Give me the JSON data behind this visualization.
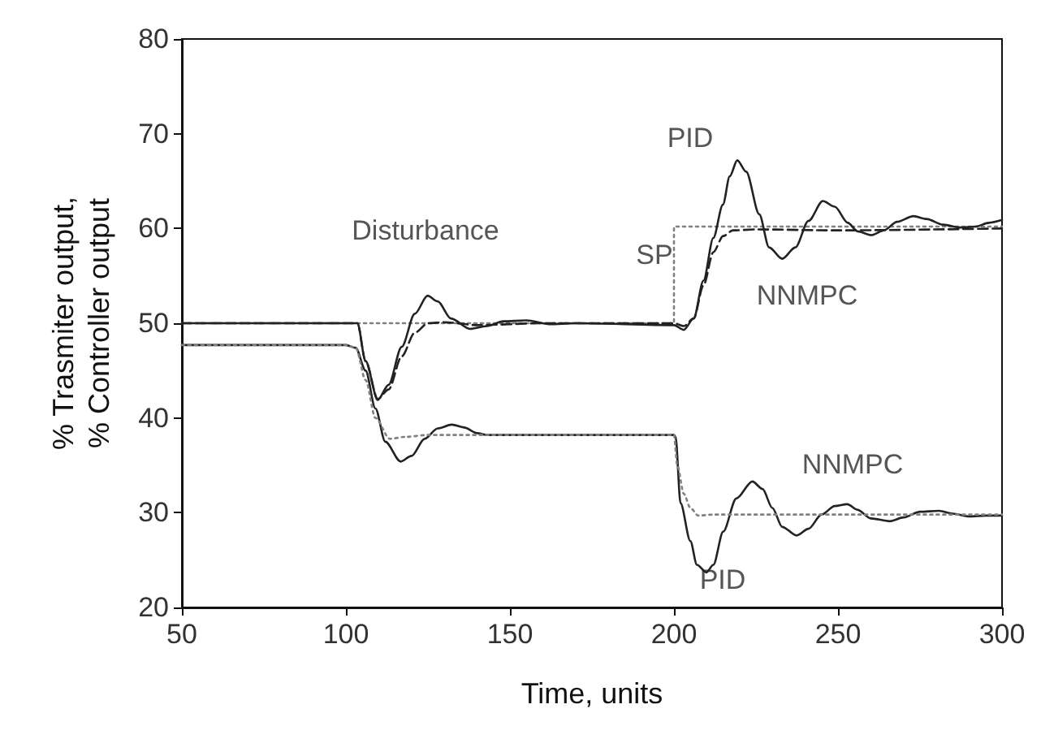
{
  "chart_data": {
    "type": "line",
    "xlabel": "Time, units",
    "ylabel": "% Trasmiter output,\n% Controller output",
    "xlim": [
      50,
      300
    ],
    "xticks": [
      50,
      100,
      150,
      200,
      250,
      300
    ],
    "ylim": [
      20,
      80
    ],
    "yticks": [
      20,
      30,
      40,
      50,
      60,
      70,
      80
    ],
    "grid": false,
    "marker": "none",
    "series": [
      {
        "color": "#808080",
        "line_style": "dotted",
        "x": [
          50,
          200,
          200,
          300
        ],
        "values": [
          50,
          50,
          60.2,
          60.2
        ]
      },
      {
        "color": "#222222",
        "line_style": "dashed",
        "x": [
          50,
          103.5,
          106,
          109.7,
          113,
          117,
          121,
          125,
          130,
          140,
          160,
          200,
          203,
          206,
          209,
          212,
          215,
          218,
          225,
          250,
          300
        ],
        "values": [
          50,
          50,
          46,
          42,
          43,
          46.5,
          49,
          50,
          50.1,
          49.8,
          50,
          50,
          49.7,
          50.5,
          54,
          57.5,
          59.2,
          59.8,
          59.9,
          59.8,
          60
        ]
      },
      {
        "color": "#222222",
        "line_style": "solid",
        "x": [
          50,
          103.5,
          106,
          109.7,
          113,
          117,
          121,
          124.9,
          128,
          132,
          137.8,
          143,
          148,
          155,
          162,
          170,
          200,
          203,
          206,
          209,
          212,
          214.9,
          217,
          219.3,
          222,
          226,
          229,
          233,
          237,
          241,
          245.4,
          249,
          253,
          256,
          260.2,
          264,
          268,
          273,
          277,
          282,
          287.4,
          292,
          296,
          300
        ],
        "values": [
          50,
          50,
          46,
          41.9,
          43.5,
          47.5,
          51,
          52.9,
          52.3,
          50.5,
          49.4,
          49.7,
          50.2,
          50.3,
          49.9,
          50,
          49.8,
          49.3,
          50.5,
          54.5,
          59,
          62.5,
          65.5,
          67.2,
          66,
          61.5,
          58,
          56.8,
          58,
          60.8,
          62.9,
          62.3,
          60.6,
          59.7,
          59.3,
          59.8,
          60.7,
          61.3,
          61,
          60.4,
          60.1,
          60.2,
          60.6,
          60.9
        ]
      },
      {
        "color": "#222222",
        "line_style": "solid",
        "x": [
          50,
          100,
          103,
          106,
          109,
          112,
          116.7,
          120,
          124,
          128,
          132.3,
          136,
          140,
          143,
          150,
          200,
          200.5,
          202,
          205,
          207,
          209.9,
          212,
          215,
          219,
          223.9,
          227,
          230,
          233,
          237.4,
          241,
          245,
          249,
          252.8,
          256,
          260,
          265.8,
          270,
          275,
          280.8,
          285,
          290,
          295,
          300
        ],
        "values": [
          47.7,
          47.7,
          47.4,
          45,
          41,
          37.5,
          35.4,
          36,
          37.8,
          38.9,
          39.3,
          39,
          38.4,
          38.2,
          38.2,
          38.2,
          38,
          31,
          27,
          24.5,
          23.7,
          24.5,
          28,
          31.5,
          33.3,
          32.5,
          30.5,
          28.5,
          27.6,
          28.3,
          29.8,
          30.7,
          30.9,
          30.3,
          29.4,
          29.1,
          29.5,
          30.1,
          30.2,
          29.9,
          29.6,
          29.7,
          29.7
        ]
      },
      {
        "color": "#808080",
        "line_style": "dotted",
        "x": [
          50,
          100,
          103,
          106,
          109,
          113.4,
          118,
          125,
          150,
          200,
          201,
          203,
          205,
          207.4,
          212,
          250,
          300
        ],
        "values": [
          47.7,
          47.7,
          47.4,
          44,
          40,
          37.8,
          38,
          38.2,
          38.2,
          38.2,
          35,
          32,
          30.5,
          29.7,
          29.8,
          29.8,
          29.8
        ]
      }
    ],
    "annotations": [
      "Disturbance",
      "PID",
      "SP",
      "NNMPC",
      "NNMPC",
      "PID"
    ]
  }
}
